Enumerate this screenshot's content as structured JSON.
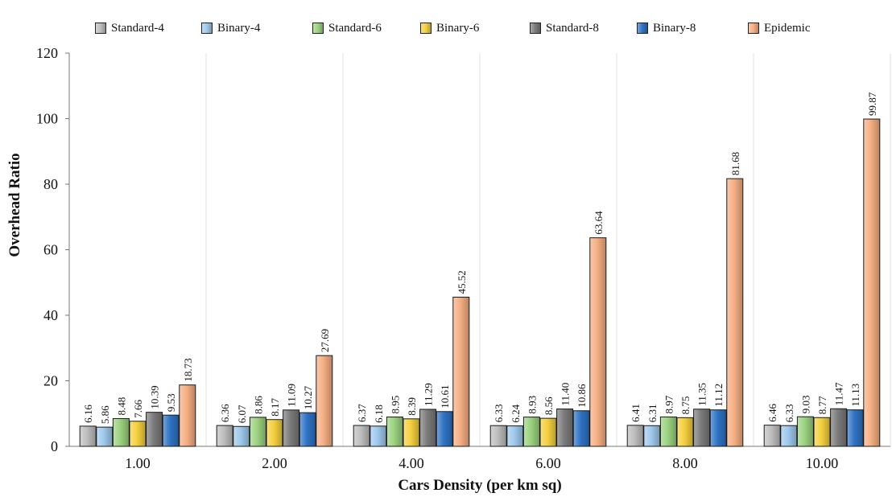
{
  "chart_data": {
    "type": "bar",
    "xlabel": "Cars Density (per km sq)",
    "ylabel": "Overhead Ratio",
    "ylim": [
      0,
      120
    ],
    "yticks": [
      "0",
      "20",
      "40",
      "60",
      "80",
      "100",
      "120"
    ],
    "categories": [
      "1.00",
      "2.00",
      "4.00",
      "6.00",
      "8.00",
      "10.00"
    ],
    "grid": "vertical",
    "legend_position": "top",
    "series": [
      {
        "name": "Standard-4",
        "color": "#bdbdbd",
        "values": [
          6.16,
          6.36,
          6.37,
          6.33,
          6.41,
          6.46
        ],
        "labels": [
          "6.16",
          "6.36",
          "6.37",
          "6.33",
          "6.41",
          "6.46"
        ]
      },
      {
        "name": "Binary-4",
        "color": "#9ec9ec",
        "values": [
          5.86,
          6.07,
          6.18,
          6.24,
          6.31,
          6.33
        ],
        "labels": [
          "5.86",
          "6.07",
          "6.18",
          "6.24",
          "6.31",
          "6.33"
        ]
      },
      {
        "name": "Standard-6",
        "color": "#9bd27f",
        "values": [
          8.48,
          8.86,
          8.95,
          8.93,
          8.97,
          9.03
        ],
        "labels": [
          "8.48",
          "8.86",
          "8.95",
          "8.93",
          "8.97",
          "9.03"
        ]
      },
      {
        "name": "Binary-6",
        "color": "#f4d03f",
        "values": [
          7.66,
          8.17,
          8.39,
          8.56,
          8.75,
          8.77
        ],
        "labels": [
          "7.66",
          "8.17",
          "8.39",
          "8.56",
          "8.75",
          "8.77"
        ]
      },
      {
        "name": "Standard-8",
        "color": "#7b7b7b",
        "values": [
          10.39,
          11.09,
          11.29,
          11.4,
          11.35,
          11.47
        ],
        "labels": [
          "10.39",
          "11.09",
          "11.29",
          "11.40",
          "11.35",
          "11.47"
        ]
      },
      {
        "name": "Binary-8",
        "color": "#2f73c4",
        "values": [
          9.53,
          10.27,
          10.61,
          10.86,
          11.12,
          11.13
        ],
        "labels": [
          "9.53",
          "10.27",
          "10.61",
          "10.86",
          "11.12",
          "11.13"
        ]
      },
      {
        "name": "Epidemic",
        "color": "#f5ae82",
        "values": [
          18.73,
          27.69,
          45.52,
          63.64,
          81.68,
          99.87
        ],
        "labels": [
          "18.73",
          "27.69",
          "45.52",
          "63.64",
          "81.68",
          "99.87"
        ]
      }
    ]
  }
}
